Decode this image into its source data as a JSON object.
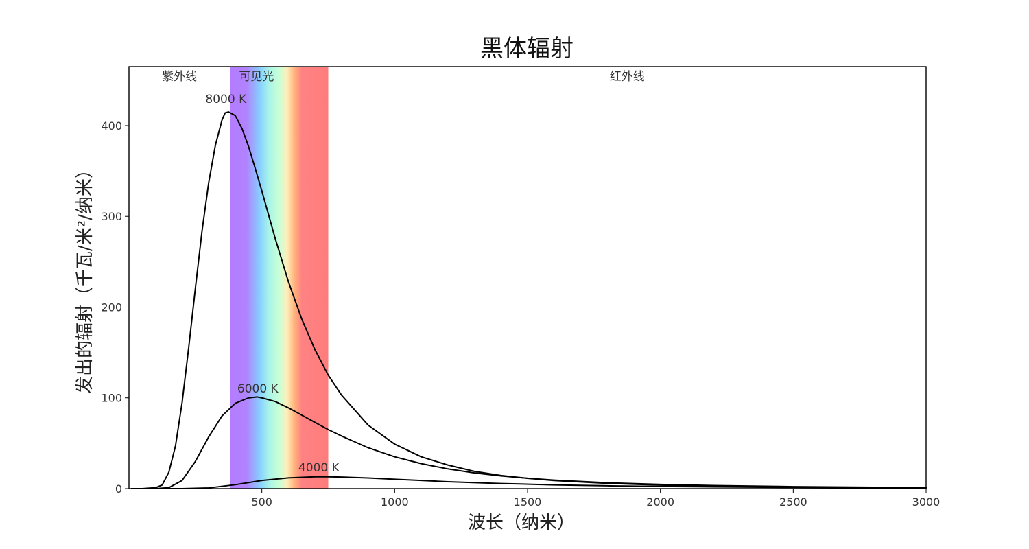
{
  "chart_data": {
    "type": "line",
    "title": "黑体辐射",
    "xlabel": "波长（纳米）",
    "ylabel": "发出的辐射（千瓦/米²/纳米）",
    "xlim": [
      0,
      3000
    ],
    "ylim": [
      0,
      465
    ],
    "x_ticks": [
      500,
      1000,
      1500,
      2000,
      2500,
      3000
    ],
    "y_ticks": [
      0,
      100,
      200,
      300,
      400
    ],
    "grid": false,
    "legend": "none",
    "regions": [
      {
        "label": "紫外线",
        "x_start": 0,
        "x_end": 380
      },
      {
        "label": "可见光",
        "x_start": 380,
        "x_end": 750
      },
      {
        "label": "红外线",
        "x_start": 750,
        "x_end": 3000
      }
    ],
    "series": [
      {
        "name": "8000 K",
        "x": [
          10,
          50,
          100,
          125,
          150,
          175,
          200,
          225,
          250,
          275,
          300,
          325,
          350,
          362,
          375,
          400,
          425,
          450,
          475,
          500,
          550,
          600,
          650,
          700,
          750,
          800,
          900,
          1000,
          1100,
          1200,
          1300,
          1400,
          1500,
          1600,
          1800,
          2000,
          2200,
          2500,
          2800,
          3000
        ],
        "y": [
          0,
          0,
          1,
          4,
          18,
          47,
          95,
          156,
          221,
          284,
          337,
          378,
          406,
          414,
          415,
          411,
          397,
          377,
          353,
          328,
          276,
          228,
          187,
          153,
          125,
          103,
          70,
          49,
          35,
          26,
          19,
          14.5,
          11.3,
          8.9,
          5.8,
          3.9,
          2.8,
          1.7,
          1.1,
          0.9
        ],
        "label_text": "8000 K"
      },
      {
        "name": "6000 K",
        "x": [
          10,
          50,
          100,
          150,
          200,
          250,
          300,
          350,
          400,
          450,
          483,
          500,
          550,
          600,
          650,
          700,
          750,
          800,
          900,
          1000,
          1100,
          1200,
          1300,
          1400,
          1500,
          1600,
          1800,
          2000,
          2200,
          2500,
          2800,
          3000
        ],
        "y": [
          0,
          0,
          0,
          1,
          9,
          30,
          57,
          80,
          94,
          100,
          101,
          100,
          96,
          89,
          81,
          73,
          65,
          58,
          45,
          35,
          27.5,
          21.7,
          17.3,
          14,
          11.4,
          9.4,
          6.4,
          4.6,
          3.4,
          2.2,
          1.5,
          1.2
        ],
        "label_text": "6000 K"
      },
      {
        "name": "4000 K",
        "x": [
          10,
          100,
          200,
          300,
          400,
          500,
          600,
          700,
          725,
          800,
          900,
          1000,
          1200,
          1400,
          1600,
          1800,
          2000,
          2200,
          2500,
          2800,
          3000
        ],
        "y": [
          0,
          0,
          0,
          0.8,
          4.3,
          9,
          11.8,
          13,
          13.1,
          12.8,
          11.7,
          10.3,
          7.6,
          5.6,
          4.1,
          3.1,
          2.4,
          1.9,
          1.3,
          0.95,
          0.78
        ],
        "label_text": "4000 K"
      }
    ],
    "annotations": [
      {
        "text": "8000 K",
        "x": 290,
        "y": 425
      },
      {
        "text": "6000 K",
        "x": 410,
        "y": 106
      },
      {
        "text": "4000 K",
        "x": 640,
        "y": 19
      }
    ]
  }
}
